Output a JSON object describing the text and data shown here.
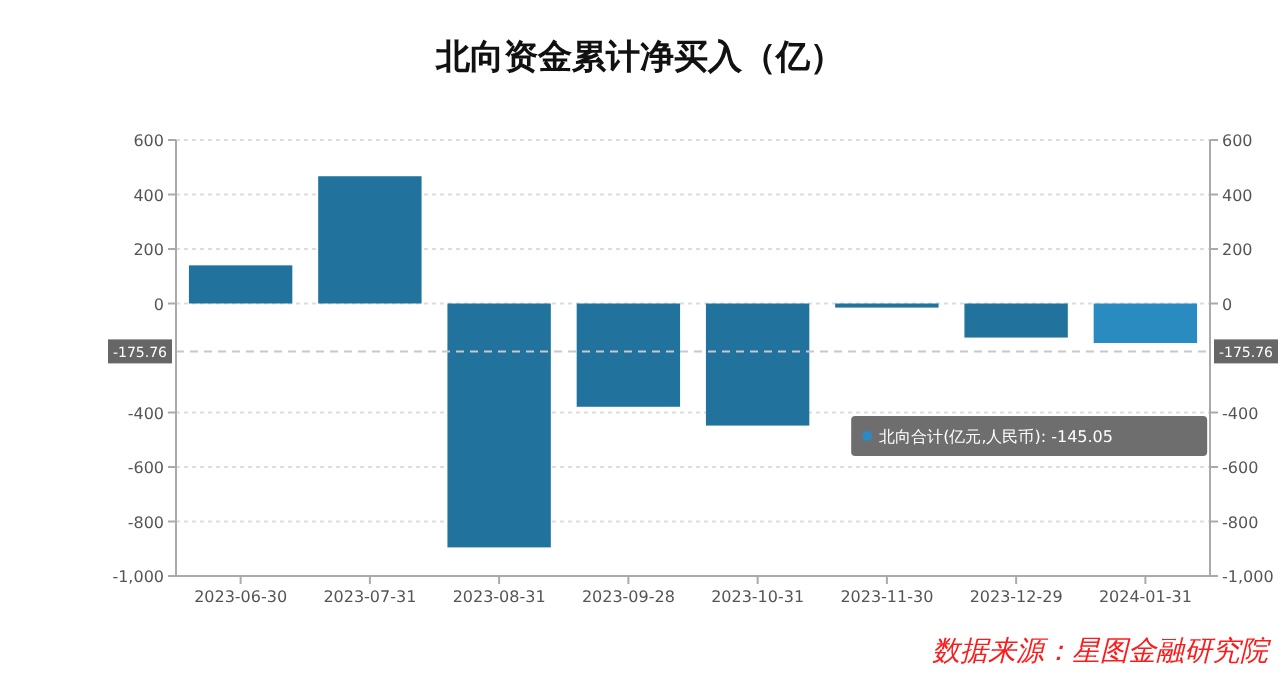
{
  "chart_data": {
    "type": "bar",
    "title": "北向资金累计净买入（亿）",
    "categories": [
      "2023-06-30",
      "2023-07-31",
      "2023-08-31",
      "2023-09-28",
      "2023-10-31",
      "2023-11-30",
      "2023-12-29",
      "2024-01-31"
    ],
    "values": [
      140,
      467,
      -895,
      -379,
      -448,
      -15,
      -125,
      -145.05
    ],
    "colors": [
      "#21739e",
      "#21739e",
      "#21739e",
      "#21739e",
      "#21739e",
      "#21739e",
      "#21739e",
      "#2a8bc0"
    ],
    "ylim": [
      -1000,
      600
    ],
    "yticks": [
      {
        "value": -1000,
        "label": "-1,000"
      },
      -800,
      -600,
      -400,
      0,
      200,
      400,
      600
    ],
    "y2lim": [
      -1000,
      600
    ],
    "y2ticks": [
      {
        "value": -1000,
        "label": "-1,000"
      },
      -800,
      -600,
      -400,
      0,
      200,
      400,
      600
    ],
    "grid": "y",
    "ref_lines": [
      {
        "axis": "y",
        "value": -175.76,
        "label": "-175.76",
        "color": "#c8c8c8",
        "line_style": "dashed"
      }
    ],
    "annotations": [
      "北向合计(亿元,人民币): -145.05",
      "数据来源：星图金融研究院"
    ]
  }
}
